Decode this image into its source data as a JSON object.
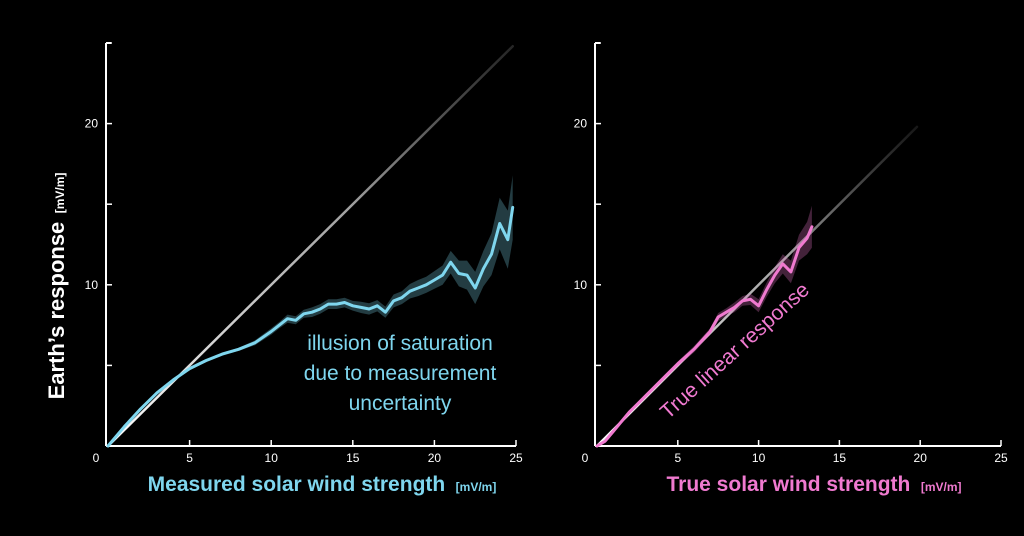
{
  "ylabel": {
    "main": "Earth’s response",
    "unit": "[mV/m]"
  },
  "chart_data": [
    {
      "type": "line",
      "xlabel": "Measured solar wind strength",
      "xlabel_unit": "[mV/m]",
      "xlim": [
        0,
        25
      ],
      "ylim": [
        0,
        25
      ],
      "x_ticks": [
        "0",
        "5",
        "10",
        "15",
        "20",
        "25"
      ],
      "y_ticks": [
        "10",
        "20"
      ],
      "grid": false,
      "accent_color": "#7fd6ee",
      "annotation": [
        "illusion of saturation",
        "due to measurement",
        "uncertainty"
      ],
      "reference_line": {
        "x": [
          0,
          24.8
        ],
        "y": [
          0,
          24.8
        ]
      },
      "series": [
        {
          "x": [
            0,
            1,
            2,
            3,
            4,
            5,
            6,
            7,
            8,
            9,
            10,
            10.5,
            11,
            11.5,
            12,
            12.5,
            13,
            13.5,
            14,
            14.5,
            15,
            15.5,
            16,
            16.5,
            17,
            17.5,
            18,
            18.5,
            19,
            19.5,
            20,
            20.5,
            21,
            21.5,
            22,
            22.5,
            23,
            23.5,
            24,
            24.5,
            24.8
          ],
          "y": [
            0,
            1.2,
            2.3,
            3.3,
            4.1,
            4.8,
            5.3,
            5.7,
            6.0,
            6.4,
            7.1,
            7.5,
            7.9,
            7.8,
            8.2,
            8.3,
            8.5,
            8.8,
            8.8,
            8.9,
            8.7,
            8.6,
            8.5,
            8.7,
            8.3,
            9.0,
            9.2,
            9.6,
            9.8,
            10.0,
            10.3,
            10.6,
            11.4,
            10.7,
            10.6,
            9.8,
            11.0,
            11.9,
            13.8,
            12.8,
            14.8
          ],
          "band": [
            0,
            0.1,
            0.1,
            0.1,
            0.1,
            0.1,
            0.1,
            0.1,
            0.1,
            0.15,
            0.2,
            0.2,
            0.25,
            0.25,
            0.25,
            0.3,
            0.3,
            0.3,
            0.3,
            0.3,
            0.3,
            0.35,
            0.35,
            0.35,
            0.35,
            0.4,
            0.4,
            0.45,
            0.5,
            0.5,
            0.55,
            0.6,
            0.7,
            0.8,
            0.9,
            1.0,
            1.1,
            1.3,
            1.6,
            1.8,
            2.0
          ]
        }
      ]
    },
    {
      "type": "line",
      "xlabel": "True solar wind strength",
      "xlabel_unit": "[mV/m]",
      "xlim": [
        0,
        25
      ],
      "ylim": [
        0,
        25
      ],
      "x_ticks": [
        "0",
        "5",
        "10",
        "15",
        "20",
        "25"
      ],
      "y_ticks": [
        "10",
        "20"
      ],
      "grid": false,
      "accent_color": "#f07ad0",
      "annotation": [
        "True linear response"
      ],
      "reference_line": {
        "x": [
          0,
          19.8
        ],
        "y": [
          0,
          19.8
        ]
      },
      "series": [
        {
          "x": [
            0,
            0.5,
            1,
            2,
            3,
            4,
            5,
            6,
            7,
            7.5,
            8,
            8.5,
            9,
            9.5,
            10,
            10.5,
            11,
            11.5,
            12,
            12.5,
            13,
            13.3
          ],
          "y": [
            0,
            0.3,
            0.9,
            2.1,
            3.1,
            4.1,
            5.1,
            6.0,
            7.1,
            8.0,
            8.3,
            8.6,
            9.0,
            9.1,
            8.7,
            9.7,
            10.6,
            11.3,
            10.8,
            12.3,
            12.9,
            13.6
          ],
          "band": [
            0,
            0.1,
            0.1,
            0.1,
            0.1,
            0.15,
            0.15,
            0.2,
            0.2,
            0.25,
            0.25,
            0.3,
            0.3,
            0.35,
            0.4,
            0.45,
            0.5,
            0.6,
            0.7,
            0.8,
            1.0,
            1.3
          ]
        }
      ]
    }
  ]
}
